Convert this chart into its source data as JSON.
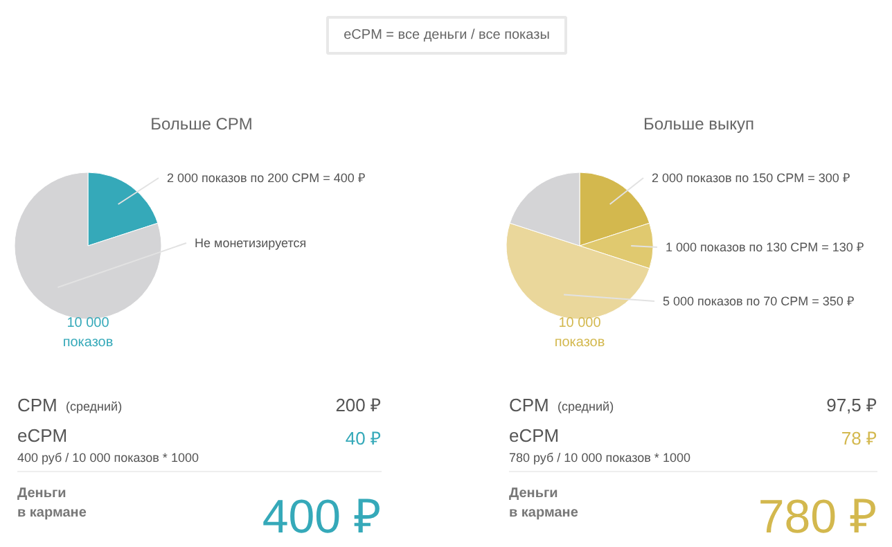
{
  "chart_data": [
    {
      "type": "other",
      "title": "eCPM = все деньги / все показы"
    },
    {
      "type": "pie",
      "title": "Больше CPM",
      "categories": [
        "2 000 показов по 200 CPM = 400 ₽",
        "Не монетизируется"
      ],
      "values": [
        20,
        80
      ],
      "colors": [
        "#35a9b9",
        "#d4d4d6"
      ],
      "annotations": [
        "10 000\nпоказов",
        "CPM",
        "(средний)",
        "200 ₽",
        "eCPM",
        "40 ₽",
        "400 руб / 10 000 показов * 1000",
        "Деньги\nв кармане",
        "400 ₽"
      ]
    },
    {
      "type": "pie",
      "title": "Больше выкуп",
      "categories": [
        "2 000 показов по 150 CPM = 300 ₽",
        "1 000 показов по 130 CPM = 130 ₽",
        "5 000 показов по 70 CPM = 350 ₽",
        null
      ],
      "values": [
        20,
        10,
        50,
        20
      ],
      "colors": [
        "#d3b84e",
        "#e0c96f",
        "#ead79b",
        "#d4d4d6"
      ],
      "annotations": [
        "10 000\nпоказов",
        "CPM",
        "(средний)",
        "97,5 ₽",
        "eCPM",
        "78 ₽",
        "780 руб / 10 000 показов * 1000",
        "Деньги\nв кармане",
        "780 ₽"
      ]
    }
  ]
}
